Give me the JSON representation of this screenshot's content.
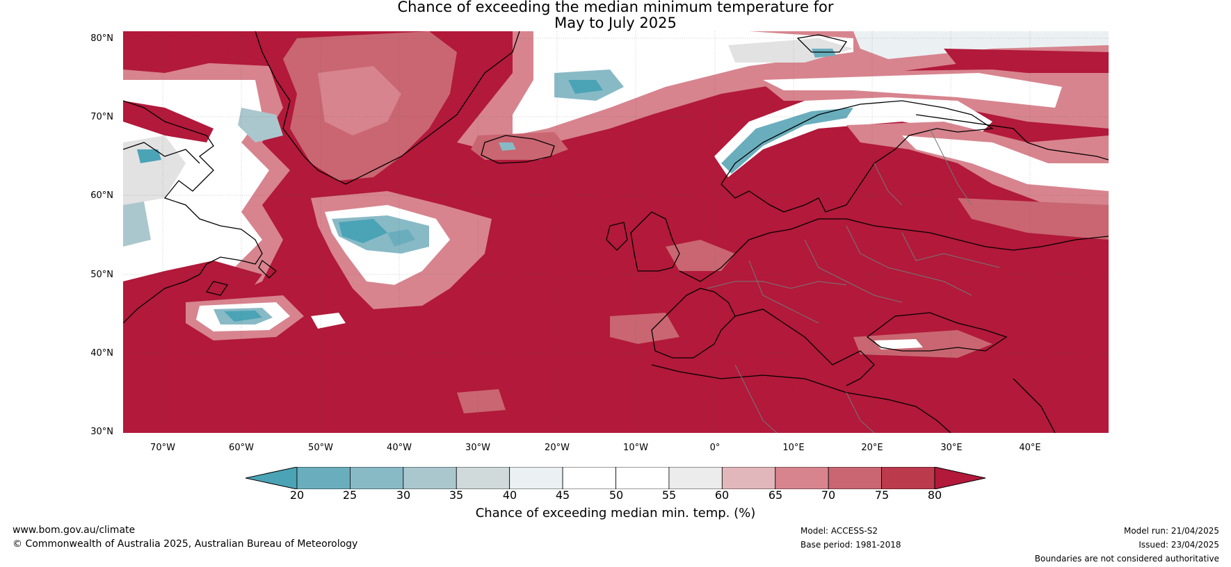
{
  "title_line1": "Chance of exceeding the median minimum temperature for",
  "title_line2": "May to July 2025",
  "lat_labels": [
    "80°N",
    "70°N",
    "60°N",
    "50°N",
    "40°N",
    "30°N"
  ],
  "lon_labels": [
    "70°W",
    "60°W",
    "50°W",
    "40°W",
    "30°W",
    "20°W",
    "10°W",
    "0°",
    "10°E",
    "20°E",
    "30°E",
    "40°E"
  ],
  "colorbar": {
    "ticks": [
      "20",
      "25",
      "30",
      "35",
      "40",
      "45",
      "50",
      "55",
      "60",
      "65",
      "70",
      "75",
      "80"
    ],
    "label": "Chance of exceeding median min. temp. (%)",
    "colors": [
      "#4ba3b6",
      "#6aaebd",
      "#88bac6",
      "#abc7ce",
      "#d0dadb",
      "#ebf1f3",
      "#ffffff",
      "#ffffff",
      "#ececec",
      "#e2b7bb",
      "#d7848e",
      "#c96671",
      "#bb3a4c",
      "#b2193a"
    ]
  },
  "footer": {
    "url": "www.bom.gov.au/climate",
    "copyright": "© Commonwealth of Australia 2025, Australian Bureau of Meteorology",
    "model": "Model: ACCESS-S2",
    "base_period": "Base period: 1981-2018",
    "model_run": "Model run: 21/04/2025",
    "issued": "Issued: 23/04/2025",
    "disclaimer": "Boundaries are not considered authoritative"
  }
}
